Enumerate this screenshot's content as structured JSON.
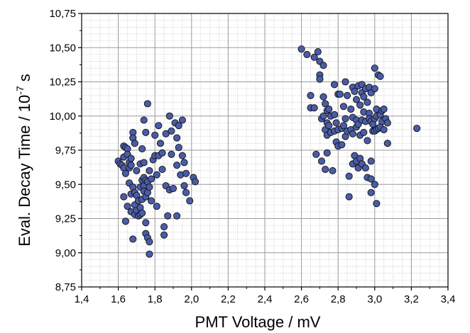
{
  "chart_data": {
    "type": "scatter",
    "title": "",
    "xlabel": "PMT Voltage / mV",
    "ylabel_main": "Eval. Decay Time / 10",
    "ylabel_exp": "-7",
    "ylabel_unit": " s",
    "xlim": [
      1.4,
      3.4
    ],
    "ylim": [
      8.75,
      10.75
    ],
    "x_ticks": [
      "1,4",
      "1,6",
      "1,8",
      "2,0",
      "2,2",
      "2,4",
      "2,6",
      "2,8",
      "3,0",
      "3,2",
      "3,4"
    ],
    "y_ticks": [
      "8,75",
      "9,00",
      "9,25",
      "9,50",
      "9,75",
      "10,00",
      "10,25",
      "10,50",
      "10,75"
    ],
    "grid": true,
    "marker_color": "#4a5ca8",
    "points": [
      [
        1.6,
        9.67
      ],
      [
        1.61,
        9.65
      ],
      [
        1.62,
        9.64
      ],
      [
        1.63,
        9.78
      ],
      [
        1.63,
        9.7
      ],
      [
        1.63,
        9.62
      ],
      [
        1.64,
        9.77
      ],
      [
        1.64,
        9.58
      ],
      [
        1.63,
        9.41
      ],
      [
        1.64,
        9.23
      ],
      [
        1.65,
        9.76
      ],
      [
        1.65,
        9.72
      ],
      [
        1.65,
        9.34
      ],
      [
        1.66,
        9.66
      ],
      [
        1.66,
        9.62
      ],
      [
        1.66,
        9.51
      ],
      [
        1.67,
        9.43
      ],
      [
        1.67,
        9.3
      ],
      [
        1.67,
        9.69
      ],
      [
        1.67,
        9.64
      ],
      [
        1.68,
        9.88
      ],
      [
        1.68,
        9.84
      ],
      [
        1.68,
        9.48
      ],
      [
        1.68,
        9.1
      ],
      [
        1.69,
        9.8
      ],
      [
        1.69,
        9.44
      ],
      [
        1.69,
        9.35
      ],
      [
        1.69,
        9.28
      ],
      [
        1.7,
        9.6
      ],
      [
        1.7,
        9.42
      ],
      [
        1.7,
        9.31
      ],
      [
        1.71,
        9.38
      ],
      [
        1.71,
        9.27
      ],
      [
        1.72,
        9.65
      ],
      [
        1.72,
        9.48
      ],
      [
        1.72,
        9.33
      ],
      [
        1.72,
        9.28
      ],
      [
        1.73,
        9.76
      ],
      [
        1.73,
        9.53
      ],
      [
        1.73,
        9.39
      ],
      [
        1.73,
        9.29
      ],
      [
        1.74,
        9.97
      ],
      [
        1.74,
        9.66
      ],
      [
        1.74,
        9.55
      ],
      [
        1.74,
        9.49
      ],
      [
        1.74,
        9.45
      ],
      [
        1.75,
        9.88
      ],
      [
        1.75,
        9.53
      ],
      [
        1.75,
        9.41
      ],
      [
        1.75,
        9.22
      ],
      [
        1.75,
        9.14
      ],
      [
        1.76,
        9.52
      ],
      [
        1.76,
        9.44
      ],
      [
        1.76,
        9.11
      ],
      [
        1.76,
        10.09
      ],
      [
        1.77,
        9.6
      ],
      [
        1.77,
        9.48
      ],
      [
        1.77,
        9.08
      ],
      [
        1.77,
        8.99
      ],
      [
        1.78,
        9.54
      ],
      [
        1.78,
        9.38
      ],
      [
        1.79,
        9.68
      ],
      [
        1.8,
        9.86
      ],
      [
        1.8,
        9.71
      ],
      [
        1.81,
        9.57
      ],
      [
        1.81,
        9.34
      ],
      [
        1.82,
        9.93
      ],
      [
        1.82,
        9.71
      ],
      [
        1.83,
        9.8
      ],
      [
        1.84,
        9.73
      ],
      [
        1.84,
        9.61
      ],
      [
        1.85,
        9.19
      ],
      [
        1.85,
        9.13
      ],
      [
        1.86,
        9.87
      ],
      [
        1.86,
        9.49
      ],
      [
        1.87,
        9.27
      ],
      [
        1.88,
        10.0
      ],
      [
        1.88,
        9.46
      ],
      [
        1.89,
        9.89
      ],
      [
        1.89,
        9.72
      ],
      [
        1.9,
        9.47
      ],
      [
        1.91,
        9.95
      ],
      [
        1.92,
        9.84
      ],
      [
        1.92,
        9.64
      ],
      [
        1.92,
        9.27
      ],
      [
        1.93,
        9.93
      ],
      [
        1.93,
        9.77
      ],
      [
        1.94,
        9.57
      ],
      [
        1.95,
        9.97
      ],
      [
        1.95,
        9.71
      ],
      [
        1.96,
        9.66
      ],
      [
        1.96,
        9.49
      ],
      [
        1.97,
        9.44
      ],
      [
        1.97,
        9.58
      ],
      [
        1.99,
        9.38
      ],
      [
        2.01,
        9.55
      ],
      [
        2.02,
        9.52
      ],
      [
        2.6,
        10.49
      ],
      [
        2.63,
        10.45
      ],
      [
        2.65,
        10.15
      ],
      [
        2.65,
        10.06
      ],
      [
        2.67,
        10.43
      ],
      [
        2.67,
        10.06
      ],
      [
        2.68,
        9.72
      ],
      [
        2.69,
        10.47
      ],
      [
        2.7,
        10.4
      ],
      [
        2.7,
        10.3
      ],
      [
        2.7,
        10.27
      ],
      [
        2.71,
        9.98
      ],
      [
        2.71,
        9.67
      ],
      [
        2.72,
        10.37
      ],
      [
        2.72,
        10.14
      ],
      [
        2.72,
        10.0
      ],
      [
        2.73,
        10.09
      ],
      [
        2.73,
        9.9
      ],
      [
        2.73,
        9.61
      ],
      [
        2.74,
        10.04
      ],
      [
        2.74,
        9.95
      ],
      [
        2.74,
        9.86
      ],
      [
        2.74,
        9.73
      ],
      [
        2.75,
        10.05
      ],
      [
        2.75,
        9.93
      ],
      [
        2.76,
        10.0
      ],
      [
        2.76,
        9.88
      ],
      [
        2.77,
        9.6
      ],
      [
        2.78,
        10.23
      ],
      [
        2.78,
        10.01
      ],
      [
        2.78,
        9.89
      ],
      [
        2.79,
        9.95
      ],
      [
        2.79,
        9.81
      ],
      [
        2.8,
        10.16
      ],
      [
        2.8,
        9.9
      ],
      [
        2.8,
        9.78
      ],
      [
        2.81,
        10.16
      ],
      [
        2.82,
        9.79
      ],
      [
        2.82,
        9.91
      ],
      [
        2.83,
        10.07
      ],
      [
        2.83,
        9.93
      ],
      [
        2.84,
        10.25
      ],
      [
        2.84,
        9.98
      ],
      [
        2.84,
        9.85
      ],
      [
        2.85,
        10.15
      ],
      [
        2.85,
        9.89
      ],
      [
        2.86,
        9.56
      ],
      [
        2.86,
        9.41
      ],
      [
        2.87,
        10.05
      ],
      [
        2.87,
        9.9
      ],
      [
        2.88,
        10.21
      ],
      [
        2.88,
        9.99
      ],
      [
        2.88,
        9.87
      ],
      [
        2.88,
        9.65
      ],
      [
        2.89,
        10.18
      ],
      [
        2.89,
        9.71
      ],
      [
        2.9,
        10.12
      ],
      [
        2.9,
        9.97
      ],
      [
        2.9,
        9.92
      ],
      [
        2.9,
        9.67
      ],
      [
        2.91,
        10.22
      ],
      [
        2.91,
        9.94
      ],
      [
        2.91,
        9.62
      ],
      [
        2.92,
        10.08
      ],
      [
        2.92,
        9.86
      ],
      [
        2.92,
        9.69
      ],
      [
        2.93,
        10.23
      ],
      [
        2.93,
        10.17
      ],
      [
        2.93,
        9.97
      ],
      [
        2.93,
        9.65
      ],
      [
        2.94,
        10.14
      ],
      [
        2.94,
        10.03
      ],
      [
        2.94,
        9.88
      ],
      [
        2.95,
        10.2
      ],
      [
        2.95,
        9.96
      ],
      [
        2.95,
        9.62
      ],
      [
        2.96,
        10.1
      ],
      [
        2.96,
        9.82
      ],
      [
        2.96,
        9.55
      ],
      [
        2.97,
        10.21
      ],
      [
        2.97,
        10.02
      ],
      [
        2.97,
        9.98
      ],
      [
        2.98,
        10.17
      ],
      [
        2.98,
        9.96
      ],
      [
        2.98,
        9.67
      ],
      [
        2.98,
        9.44
      ],
      [
        2.98,
        9.54
      ],
      [
        2.99,
        9.94
      ],
      [
        2.99,
        9.89
      ],
      [
        3.0,
        10.35
      ],
      [
        3.0,
        10.2
      ],
      [
        3.0,
        9.98
      ],
      [
        3.0,
        9.89
      ],
      [
        3.0,
        9.5
      ],
      [
        3.01,
        10.05
      ],
      [
        3.01,
        10.0
      ],
      [
        3.01,
        9.9
      ],
      [
        3.01,
        9.36
      ],
      [
        3.02,
        10.3
      ],
      [
        3.02,
        9.91
      ],
      [
        3.03,
        10.29
      ],
      [
        3.03,
        10.01
      ],
      [
        3.03,
        9.92
      ],
      [
        3.04,
        10.04
      ],
      [
        3.04,
        9.96
      ],
      [
        3.05,
        10.05
      ],
      [
        3.05,
        9.9
      ],
      [
        3.06,
        9.98
      ],
      [
        3.07,
        9.95
      ],
      [
        3.07,
        9.8
      ],
      [
        3.23,
        9.91
      ]
    ]
  }
}
